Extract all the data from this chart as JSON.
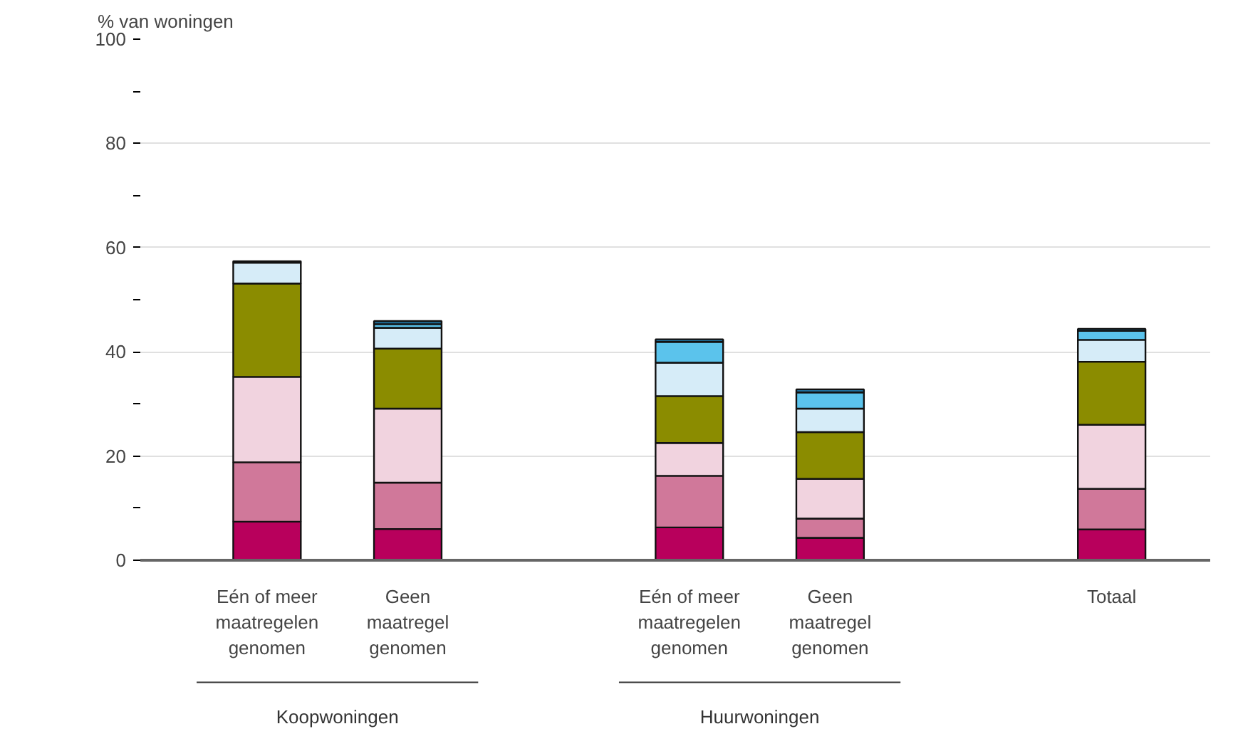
{
  "chart_data": {
    "type": "bar",
    "stacked": true,
    "ylabel": "% van woningen",
    "categories": [
      "Eén of meer maatregelen genomen",
      "Geen maatregel genomen",
      null,
      "Eén of meer maatregelen genomen",
      "Geen maatregel genomen",
      null,
      "Totaal"
    ],
    "series": [
      {
        "color": "#b8005c",
        "values": [
          7.4,
          6.0,
          null,
          6.3,
          4.3,
          null,
          5.9
        ]
      },
      {
        "color": "#d0789a",
        "values": [
          11.4,
          8.9,
          null,
          9.9,
          3.7,
          null,
          7.8
        ]
      },
      {
        "color": "#f1d3df",
        "values": [
          16.4,
          14.2,
          null,
          6.3,
          7.6,
          null,
          12.3
        ]
      },
      {
        "color": "#8b8c00",
        "values": [
          17.9,
          11.5,
          null,
          9.0,
          9.0,
          null,
          12.1
        ]
      },
      {
        "color": "#d6ecf8",
        "values": [
          4.0,
          4.0,
          null,
          6.4,
          4.5,
          null,
          4.2
        ]
      },
      {
        "color": "#5bc3ec",
        "values": [
          null,
          0.7,
          null,
          4.0,
          3.1,
          null,
          1.7
        ]
      },
      {
        "color": "#1f6e9a",
        "values": [
          0.3,
          0.6,
          null,
          0.5,
          0.6,
          null,
          0.4
        ]
      }
    ],
    "ylim": [
      0,
      100
    ],
    "yticks": [
      0,
      {
        "value": 10,
        "label": null
      },
      20,
      {
        "value": 30,
        "label": null
      },
      40,
      {
        "value": 50,
        "label": null
      },
      60,
      {
        "value": 70,
        "label": null
      },
      80,
      {
        "value": 90,
        "label": null
      },
      100
    ],
    "grid": "y",
    "annotations": [
      "Koopwoningen",
      "Huurwoningen"
    ]
  }
}
